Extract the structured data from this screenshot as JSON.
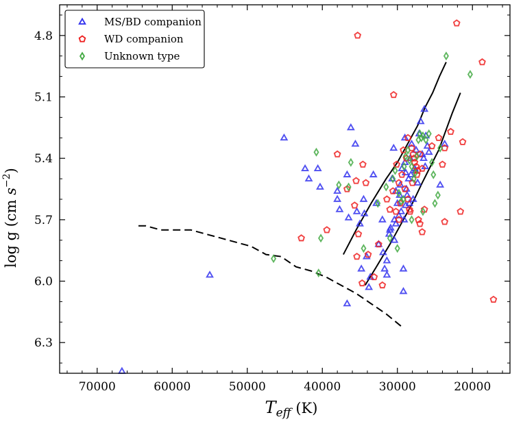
{
  "chart_data": {
    "type": "scatter",
    "title": "",
    "xlabel": "T_eff (K)",
    "xlabel_parts": {
      "symbol_main": "T",
      "symbol_sub": "eff",
      "unit": "(K)"
    },
    "ylabel": "log g (cm s^-2)",
    "ylabel_parts": {
      "prefix": "log g (cm ",
      "symbol": "s",
      "exponent": "−2",
      "suffix": ")"
    },
    "xlim": [
      75000,
      15000
    ],
    "ylim": [
      6.45,
      4.65
    ],
    "x_ticks": [
      70000,
      60000,
      50000,
      40000,
      30000,
      20000
    ],
    "x_tick_labels": [
      "70000",
      "60000",
      "50000",
      "40000",
      "30000",
      "20000"
    ],
    "y_ticks": [
      4.8,
      5.1,
      5.4,
      5.7,
      6.0,
      6.3
    ],
    "y_tick_labels": [
      "4.8",
      "5.1",
      "5.4",
      "5.7",
      "6.0",
      "6.3"
    ],
    "legend_position": "top-left",
    "series": [
      {
        "name": "MS/BD companion",
        "color": "#3333ee",
        "marker": "triangle",
        "points": [
          [
            66700,
            6.44
          ],
          [
            55000,
            5.97
          ],
          [
            45100,
            5.3
          ],
          [
            42300,
            5.45
          ],
          [
            41800,
            5.5
          ],
          [
            40600,
            5.45
          ],
          [
            40300,
            5.54
          ],
          [
            38000,
            5.56
          ],
          [
            38000,
            5.6
          ],
          [
            37700,
            5.65
          ],
          [
            36700,
            5.48
          ],
          [
            36500,
            5.69
          ],
          [
            36200,
            5.25
          ],
          [
            35600,
            5.33
          ],
          [
            35400,
            5.66
          ],
          [
            35000,
            5.72
          ],
          [
            34500,
            5.6
          ],
          [
            34400,
            5.67
          ],
          [
            34100,
            5.88
          ],
          [
            33200,
            5.48
          ],
          [
            32800,
            5.62
          ],
          [
            32500,
            5.82
          ],
          [
            31900,
            5.86
          ],
          [
            31700,
            5.94
          ],
          [
            31400,
            5.9
          ],
          [
            31100,
            5.77
          ],
          [
            30900,
            5.74
          ],
          [
            30700,
            5.5
          ],
          [
            30400,
            5.7
          ],
          [
            30200,
            5.56
          ],
          [
            30000,
            5.62
          ],
          [
            29800,
            5.68
          ],
          [
            29600,
            5.53
          ],
          [
            29400,
            5.45
          ],
          [
            29100,
            5.7
          ],
          [
            29000,
            5.42
          ],
          [
            28900,
            5.47
          ],
          [
            28700,
            5.58
          ],
          [
            28500,
            5.5
          ],
          [
            28300,
            5.4
          ],
          [
            28100,
            5.33
          ],
          [
            27900,
            5.6
          ],
          [
            27700,
            5.45
          ],
          [
            27500,
            5.36
          ],
          [
            27300,
            5.52
          ],
          [
            27100,
            5.28
          ],
          [
            26900,
            5.22
          ],
          [
            26700,
            5.38
          ],
          [
            26500,
            5.4
          ],
          [
            26300,
            5.44
          ],
          [
            26200,
            5.29
          ],
          [
            26000,
            5.34
          ],
          [
            25800,
            5.37
          ],
          [
            30500,
            5.35
          ],
          [
            29000,
            5.3
          ],
          [
            33600,
            5.98
          ],
          [
            29200,
            5.94
          ],
          [
            36700,
            6.11
          ],
          [
            29200,
            6.05
          ],
          [
            30400,
            5.8
          ],
          [
            31000,
            5.75
          ],
          [
            32000,
            5.7
          ],
          [
            28400,
            5.62
          ],
          [
            29700,
            5.58
          ],
          [
            27600,
            5.46
          ],
          [
            28900,
            5.63
          ],
          [
            26400,
            5.16
          ],
          [
            24300,
            5.53
          ],
          [
            23700,
            5.33
          ],
          [
            31400,
            5.97
          ],
          [
            34800,
            5.94
          ],
          [
            33800,
            6.03
          ],
          [
            30200,
            5.72
          ],
          [
            29500,
            5.66
          ],
          [
            28800,
            5.55
          ],
          [
            28200,
            5.48
          ]
        ]
      },
      {
        "name": "WD companion",
        "color": "#ee2222",
        "marker": "pentagon",
        "points": [
          [
            35300,
            4.8
          ],
          [
            22100,
            4.74
          ],
          [
            18700,
            4.93
          ],
          [
            30500,
            5.09
          ],
          [
            22900,
            5.27
          ],
          [
            21300,
            5.32
          ],
          [
            23700,
            5.35
          ],
          [
            38000,
            5.38
          ],
          [
            34600,
            5.43
          ],
          [
            35500,
            5.51
          ],
          [
            36700,
            5.55
          ],
          [
            34200,
            5.52
          ],
          [
            39400,
            5.75
          ],
          [
            42800,
            5.79
          ],
          [
            35200,
            5.77
          ],
          [
            35700,
            5.63
          ],
          [
            35400,
            5.88
          ],
          [
            33900,
            5.87
          ],
          [
            32500,
            5.82
          ],
          [
            32000,
            6.02
          ],
          [
            33100,
            5.98
          ],
          [
            34700,
            6.01
          ],
          [
            31400,
            5.6
          ],
          [
            31000,
            5.65
          ],
          [
            30200,
            5.66
          ],
          [
            29800,
            5.52
          ],
          [
            29400,
            5.48
          ],
          [
            29000,
            5.55
          ],
          [
            28600,
            5.6
          ],
          [
            28300,
            5.66
          ],
          [
            28100,
            5.35
          ],
          [
            27900,
            5.38
          ],
          [
            27700,
            5.42
          ],
          [
            27400,
            5.48
          ],
          [
            27200,
            5.7
          ],
          [
            27000,
            5.72
          ],
          [
            26700,
            5.76
          ],
          [
            26400,
            5.65
          ],
          [
            30100,
            5.43
          ],
          [
            28800,
            5.4
          ],
          [
            29200,
            5.36
          ],
          [
            27800,
            5.4
          ],
          [
            27500,
            5.44
          ],
          [
            25400,
            5.34
          ],
          [
            24500,
            5.3
          ],
          [
            24000,
            5.43
          ],
          [
            23700,
            5.71
          ],
          [
            21600,
            5.66
          ],
          [
            17200,
            6.09
          ],
          [
            28400,
            5.65
          ],
          [
            29600,
            5.62
          ],
          [
            30600,
            5.56
          ],
          [
            28000,
            5.52
          ],
          [
            27300,
            5.46
          ],
          [
            28600,
            5.3
          ],
          [
            27000,
            5.38
          ],
          [
            26700,
            5.45
          ],
          [
            29800,
            5.7
          ]
        ]
      },
      {
        "name": "Unknown type",
        "color": "#44aa44",
        "marker": "diamond",
        "points": [
          [
            23500,
            4.9
          ],
          [
            20300,
            4.99
          ],
          [
            46500,
            5.89
          ],
          [
            40500,
            5.96
          ],
          [
            40200,
            5.79
          ],
          [
            40800,
            5.37
          ],
          [
            37800,
            5.53
          ],
          [
            36500,
            5.54
          ],
          [
            36200,
            5.42
          ],
          [
            34500,
            5.84
          ],
          [
            31500,
            5.54
          ],
          [
            30600,
            5.5
          ],
          [
            30300,
            5.46
          ],
          [
            29800,
            5.57
          ],
          [
            29500,
            5.61
          ],
          [
            29100,
            5.44
          ],
          [
            28900,
            5.39
          ],
          [
            28600,
            5.36
          ],
          [
            28400,
            5.41
          ],
          [
            28100,
            5.44
          ],
          [
            27800,
            5.5
          ],
          [
            27600,
            5.47
          ],
          [
            27400,
            5.39
          ],
          [
            27200,
            5.31
          ],
          [
            27000,
            5.28
          ],
          [
            26800,
            5.3
          ],
          [
            26600,
            5.29
          ],
          [
            26200,
            5.31
          ],
          [
            25800,
            5.28
          ],
          [
            25400,
            5.42
          ],
          [
            25200,
            5.48
          ],
          [
            25000,
            5.62
          ],
          [
            24600,
            5.58
          ],
          [
            24300,
            5.35
          ],
          [
            31000,
            5.79
          ],
          [
            29200,
            5.6
          ],
          [
            28100,
            5.7
          ],
          [
            26600,
            5.66
          ],
          [
            30000,
            5.84
          ],
          [
            32600,
            5.62
          ]
        ]
      }
    ],
    "lines": [
      {
        "name": "solid-track-upper",
        "style": "solid",
        "color": "#000000",
        "points": [
          [
            37200,
            5.87
          ],
          [
            35500,
            5.75
          ],
          [
            33500,
            5.62
          ],
          [
            31500,
            5.5
          ],
          [
            30000,
            5.42
          ],
          [
            28500,
            5.32
          ],
          [
            27300,
            5.24
          ],
          [
            26300,
            5.15
          ],
          [
            25300,
            5.08
          ],
          [
            24400,
            5.0
          ],
          [
            23500,
            4.93
          ]
        ]
      },
      {
        "name": "solid-track-lower",
        "style": "solid",
        "color": "#000000",
        "points": [
          [
            34300,
            6.02
          ],
          [
            32800,
            5.93
          ],
          [
            31000,
            5.82
          ],
          [
            29500,
            5.72
          ],
          [
            28000,
            5.62
          ],
          [
            26700,
            5.52
          ],
          [
            25600,
            5.44
          ],
          [
            24500,
            5.36
          ],
          [
            23600,
            5.27
          ],
          [
            22700,
            5.18
          ],
          [
            21600,
            5.08
          ]
        ]
      },
      {
        "name": "dashed-track",
        "style": "dashed",
        "color": "#000000",
        "points": [
          [
            64500,
            5.73
          ],
          [
            63500,
            5.73
          ],
          [
            61500,
            5.75
          ],
          [
            59500,
            5.75
          ],
          [
            57500,
            5.75
          ],
          [
            55500,
            5.77
          ],
          [
            53500,
            5.79
          ],
          [
            51500,
            5.81
          ],
          [
            49500,
            5.83
          ],
          [
            47500,
            5.87
          ],
          [
            45500,
            5.88
          ],
          [
            43500,
            5.93
          ],
          [
            41500,
            5.95
          ],
          [
            39500,
            5.98
          ],
          [
            37500,
            6.02
          ],
          [
            35500,
            6.06
          ],
          [
            33500,
            6.11
          ],
          [
            31500,
            6.16
          ],
          [
            29500,
            6.22
          ]
        ]
      }
    ]
  }
}
